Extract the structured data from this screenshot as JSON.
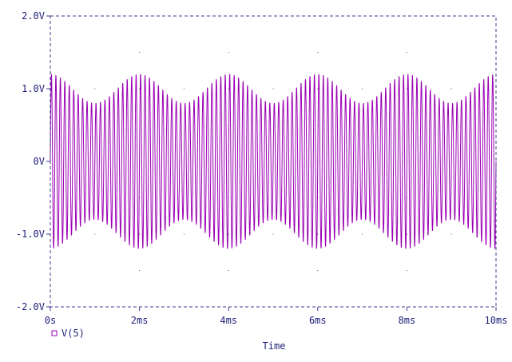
{
  "chart_data": {
    "type": "line",
    "xlabel": "Time",
    "ylabel": "",
    "xlim": [
      0,
      10
    ],
    "ylim": [
      -2.0,
      2.0
    ],
    "x_ticks": [
      {
        "value": 0,
        "label": "0s"
      },
      {
        "value": 2,
        "label": "2ms"
      },
      {
        "value": 4,
        "label": "4ms"
      },
      {
        "value": 6,
        "label": "6ms"
      },
      {
        "value": 8,
        "label": "8ms"
      },
      {
        "value": 10,
        "label": "10ms"
      }
    ],
    "y_ticks": [
      {
        "value": 2.0,
        "label": "2.0V"
      },
      {
        "value": 1.0,
        "label": "1.0V"
      },
      {
        "value": 0,
        "label": "0V"
      },
      {
        "value": -1.0,
        "label": "-1.0V"
      },
      {
        "value": -2.0,
        "label": "-2.0V"
      }
    ],
    "grid": "dotted",
    "legend_position": "bottom-left",
    "series": [
      {
        "name": "V(5)",
        "color": "#9b00b4",
        "carrier_period_ms": 0.1,
        "envelope": [
          {
            "t": 0,
            "amp": 1.2
          },
          {
            "t": 1,
            "amp": 0.8
          },
          {
            "t": 2,
            "amp": 1.2
          },
          {
            "t": 3,
            "amp": 0.8
          },
          {
            "t": 4,
            "amp": 1.2
          },
          {
            "t": 5,
            "amp": 0.8
          },
          {
            "t": 6,
            "amp": 1.2
          },
          {
            "t": 7,
            "amp": 0.8
          },
          {
            "t": 8,
            "amp": 1.2
          },
          {
            "t": 9,
            "amp": 0.8
          },
          {
            "t": 10,
            "amp": 1.2
          }
        ]
      }
    ]
  },
  "colors": {
    "frame": "#3d3d8f",
    "text": "#1f1f7a",
    "grid": "#5a5a5a"
  }
}
